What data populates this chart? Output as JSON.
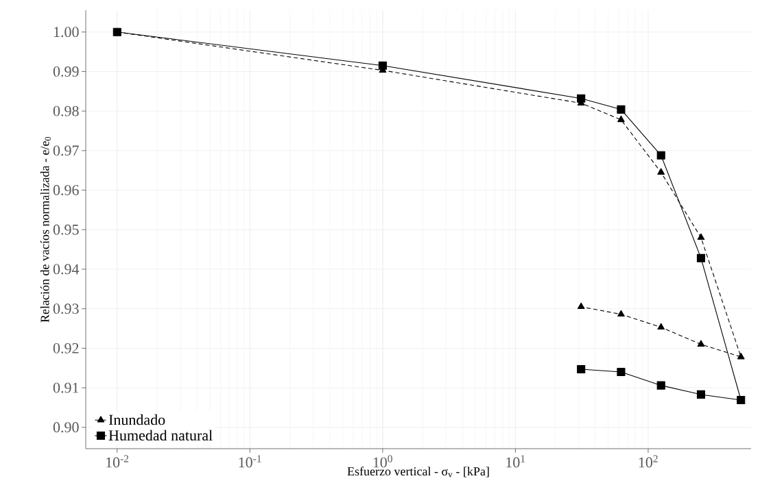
{
  "chart_data": {
    "type": "line",
    "xlabel": "Esfuerzo vertical -  σ$_{v}$  - [kPa]",
    "ylabel": "Relación de vacíos normalizada - e/e$_{0}$",
    "x": [
      0.01,
      1,
      31.25,
      62.5,
      125,
      250,
      500,
      250,
      125,
      62.5,
      31.25
    ],
    "series": [
      {
        "name": "Inundado",
        "color": "#000000",
        "marker": "triangle",
        "line_style": "dashed",
        "values": [
          1.0,
          0.9903,
          0.982,
          0.9778,
          0.9645,
          0.948,
          0.9178,
          0.921,
          0.9253,
          0.9286,
          0.9305
        ]
      },
      {
        "name": "Humedad natural",
        "color": "#000000",
        "marker": "square",
        "line_style": "solid",
        "values": [
          1.0,
          0.9915,
          0.9832,
          0.9804,
          0.9688,
          0.9428,
          0.9069,
          0.9083,
          0.9106,
          0.914,
          0.9147
        ]
      }
    ],
    "log": "x",
    "xlim": [
      0.0058,
      596
    ],
    "ylim": [
      0.8946,
      1.0055
    ],
    "xticks": [
      {
        "value": 0.01,
        "label": "10$^{-2}$"
      },
      {
        "value": 0.1,
        "label": "10$^{-1}$"
      },
      {
        "value": 1,
        "label": "10$^{0}$"
      },
      {
        "value": 10,
        "label": "10$^{1}$"
      },
      {
        "value": 100,
        "label": "10$^{2}$"
      }
    ],
    "yticks": [
      {
        "value": 0.9,
        "label": "0.90"
      },
      0.91,
      0.92,
      0.93,
      0.94,
      0.95,
      0.96,
      0.97,
      0.98,
      0.99,
      {
        "value": 1.0,
        "label": "1.00"
      }
    ],
    "grid": true,
    "legend": "bottom left"
  }
}
